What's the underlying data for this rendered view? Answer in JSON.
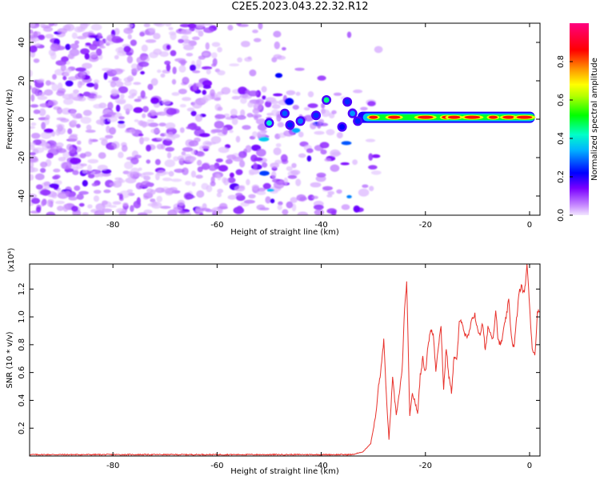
{
  "title": "C2E5.2023.043.22.32.R12",
  "chart_data": [
    {
      "type": "heatmap",
      "title": "C2E5.2023.043.22.32.R12",
      "xlabel": "Height of straight line (km)",
      "ylabel": "Frequency (Hz)",
      "xlim": [
        -96,
        2
      ],
      "ylim": [
        -50,
        50
      ],
      "x_ticks": [
        -80,
        -60,
        -40,
        -20,
        0
      ],
      "y_ticks": [
        40,
        20,
        0,
        -20,
        -40
      ],
      "colorbar": {
        "label": "Normalized spectral amplitude",
        "range": [
          0,
          1
        ],
        "ticks": [
          0.0,
          0.2,
          0.4,
          0.6,
          0.8
        ],
        "colormap": "rainbow (lavender-purple-blue-cyan-green-yellow-orange-red-pink)"
      },
      "features": {
        "noise_region_x": [
          -96,
          -35
        ],
        "coherent_signal_x": [
          -33,
          1
        ],
        "coherent_signal_frequency_hz": 1,
        "coherent_signal_amplitude": 0.85
      },
      "grid": false
    },
    {
      "type": "line",
      "xlabel": "Height of straight line (km)",
      "ylabel": "SNR (10 * v/v)",
      "y_multiplier": "(x10⁴)",
      "xlim": [
        -96,
        2
      ],
      "ylim": [
        0,
        1.38
      ],
      "x_ticks": [
        -80,
        -60,
        -40,
        -20,
        0
      ],
      "y_ticks": [
        0.2,
        0.4,
        0.6,
        0.8,
        1.0,
        1.2
      ],
      "color": "#e8302a",
      "series": [
        {
          "x": [
            -96,
            -80,
            -60,
            -40,
            -34,
            -32,
            -30.5,
            -29.5,
            -29,
            -28.5,
            -28,
            -27.6,
            -27,
            -26.3,
            -25.6,
            -25,
            -24.5,
            -24,
            -23.6,
            -23,
            -22.5,
            -22,
            -21.5,
            -21,
            -20.5,
            -20,
            -19.5,
            -19,
            -18.5,
            -18,
            -17.5,
            -17,
            -16.5,
            -16,
            -15.5,
            -15,
            -14.5,
            -14,
            -13.5,
            -13,
            -12.5,
            -12,
            -11.5,
            -11,
            -10.5,
            -10,
            -9.5,
            -9,
            -8.5,
            -8,
            -7.5,
            -7,
            -6.5,
            -6,
            -5.5,
            -5,
            -4.5,
            -4,
            -3.5,
            -3,
            -2.5,
            -2,
            -1.5,
            -1,
            -0.5,
            0,
            0.5,
            1,
            1.5,
            2
          ],
          "y": [
            0.01,
            0.01,
            0.01,
            0.01,
            0.01,
            0.03,
            0.09,
            0.3,
            0.5,
            0.63,
            0.84,
            0.5,
            0.12,
            0.55,
            0.3,
            0.45,
            0.6,
            1.05,
            1.25,
            0.28,
            0.45,
            0.39,
            0.3,
            0.58,
            0.7,
            0.6,
            0.8,
            0.9,
            0.88,
            0.62,
            0.8,
            0.93,
            0.48,
            0.78,
            0.57,
            0.46,
            0.72,
            0.68,
            0.95,
            0.98,
            0.88,
            0.84,
            0.9,
            0.99,
            1.02,
            0.9,
            0.88,
            0.95,
            0.75,
            0.93,
            0.88,
            0.85,
            1.05,
            0.82,
            0.8,
            0.9,
            1.0,
            1.12,
            0.86,
            0.77,
            0.98,
            1.18,
            1.22,
            1.16,
            1.38,
            1.08,
            0.78,
            0.72,
            1.02,
            1.05
          ]
        }
      ],
      "grid": false
    }
  ]
}
